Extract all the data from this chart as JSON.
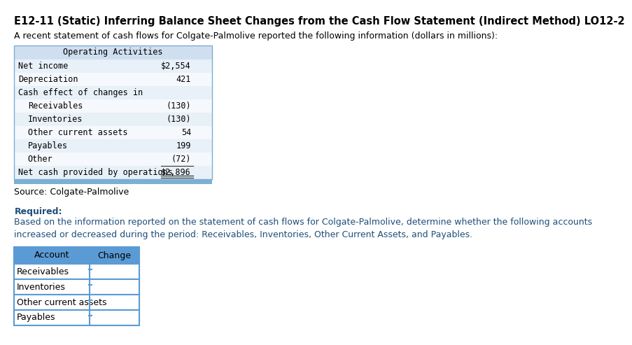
{
  "title": "E12-11 (Static) Inferring Balance Sheet Changes from the Cash Flow Statement (Indirect Method) LO12-2",
  "intro_text": "A recent statement of cash flows for Colgate-Palmolive reported the following information (dollars in millions):",
  "table_header": "Operating Activities",
  "table_rows": [
    {
      "label": "Net income",
      "indent": 0,
      "value": "$2,554",
      "bold_value": false
    },
    {
      "label": "Depreciation",
      "indent": 0,
      "value": "421",
      "bold_value": false
    },
    {
      "label": "Cash effect of changes in",
      "indent": 0,
      "value": "",
      "bold_value": false
    },
    {
      "label": "Receivables",
      "indent": 1,
      "value": "(130)",
      "bold_value": false
    },
    {
      "label": "Inventories",
      "indent": 1,
      "value": "(130)",
      "bold_value": false
    },
    {
      "label": "Other current assets",
      "indent": 1,
      "value": "54",
      "bold_value": false
    },
    {
      "label": "Payables",
      "indent": 1,
      "value": "199",
      "bold_value": false
    },
    {
      "label": "Other",
      "indent": 1,
      "value": "(72)",
      "bold_value": false
    },
    {
      "label": "Net cash provided by operations",
      "indent": 0,
      "value": "$2,896",
      "bold_value": false
    }
  ],
  "source_text": "Source: Colgate-Palmolive",
  "required_label": "Required:",
  "required_text": "Based on the information reported on the statement of cash flows for Colgate-Palmolive, determine whether the following accounts\nincreased or decreased during the period: Receivables, Inventories, Other Current Assets, and Payables.",
  "answer_table_headers": [
    "Account",
    "Change"
  ],
  "answer_table_rows": [
    "Receivables",
    "Inventories",
    "Other current assets",
    "Payables"
  ],
  "bg_color": "#ffffff",
  "table_header_bg": "#d0dff0",
  "table_row_bg_even": "#e8f0f8",
  "table_row_bg_odd": "#f5f8fc",
  "table_border_color": "#7bafd4",
  "answer_header_bg": "#5b9bd5",
  "answer_row_bg": "#ffffff",
  "answer_border_color": "#5b9bd5",
  "title_color": "#000000",
  "text_color": "#000000",
  "source_color": "#000000",
  "required_color": "#1f4e79",
  "mono_font": "monospace",
  "sans_font": "DejaVu Sans",
  "title_fontsize": 10.5,
  "body_fontsize": 9,
  "table_fontsize": 8.5,
  "ans_fontsize": 9
}
